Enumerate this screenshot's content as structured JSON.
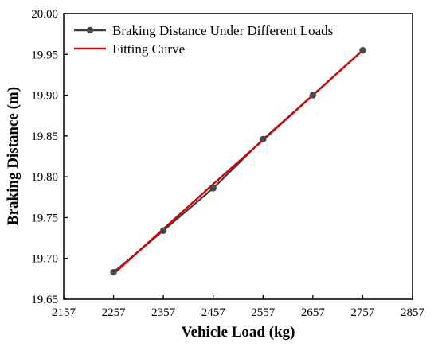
{
  "chart_data": {
    "type": "line",
    "xlabel": "Vehicle Load (kg)",
    "ylabel": "Braking Distance (m)",
    "xlim": [
      2157,
      2857
    ],
    "ylim": [
      19.65,
      20.0
    ],
    "x_ticks": [
      "2157",
      "2257",
      "2357",
      "2457",
      "2557",
      "2657",
      "2757",
      "2857"
    ],
    "y_ticks": [
      "19.65",
      "19.70",
      "19.75",
      "19.80",
      "19.85",
      "19.90",
      "19.95",
      "20.00"
    ],
    "grid": false,
    "legend_position": "top-left",
    "x": [
      2257,
      2357,
      2457,
      2557,
      2657,
      2757
    ],
    "series": [
      {
        "name": "Braking Distance Under Different Loads",
        "values": [
          19.683,
          19.734,
          19.786,
          19.846,
          19.9,
          19.955
        ],
        "color": "#3c3c3c",
        "marker": "circle"
      },
      {
        "name": "Fitting Curve",
        "values": [
          19.681,
          19.736,
          19.791,
          19.845,
          19.9,
          19.955
        ],
        "color": "#d40000",
        "marker": "none"
      }
    ]
  }
}
